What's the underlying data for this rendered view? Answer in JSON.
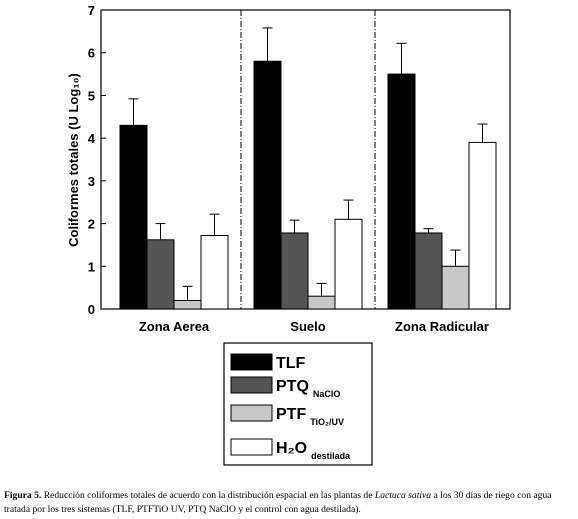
{
  "chart_data": {
    "type": "bar",
    "ylabel": "Coliformes totales (U Log₁₀)",
    "categories": [
      "Zona Aerea",
      "Suelo",
      "Zona Radicular"
    ],
    "series": [
      {
        "name": "TLF",
        "color": "#000000",
        "values": [
          4.3,
          5.8,
          5.5
        ],
        "errors": [
          0.62,
          0.78,
          0.72
        ]
      },
      {
        "name": "PTQ",
        "subscript": "NaClO",
        "color": "#555555",
        "values": [
          1.62,
          1.78,
          1.78
        ],
        "errors": [
          0.38,
          0.3,
          0.1
        ]
      },
      {
        "name": "PTF",
        "subscript": "TiO₂/UV",
        "color": "#c8c8c8",
        "values": [
          0.2,
          0.3,
          1.0
        ],
        "errors": [
          0.33,
          0.3,
          0.38
        ]
      },
      {
        "name": "H₂O",
        "subscript": "destilada",
        "color": "#ffffff",
        "values": [
          1.72,
          2.1,
          3.9
        ],
        "errors": [
          0.5,
          0.45,
          0.43
        ]
      }
    ],
    "ylim": [
      0,
      7
    ],
    "yticks": [
      0,
      1,
      2,
      3,
      4,
      5,
      6,
      7
    ],
    "grid": false
  },
  "caption": {
    "label": "Figura 5.",
    "text_before": "Reducción coliformes totales de acuerdo con la distribución espacial en las plantas de",
    "italic": "Lactuca sativa",
    "text_after": "a los 30 días de riego con agua tratada por los tres sistemas (TLF, PTFTiO UV, PTQ NaClO y el control con agua destilada)."
  }
}
